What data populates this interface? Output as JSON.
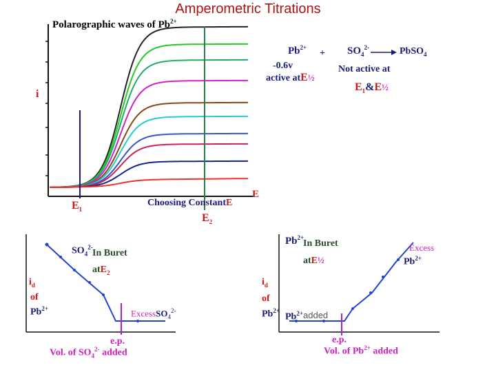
{
  "title": "Amperometric Titrations",
  "top_panel": {
    "heading": "Polarographic waves of Pb",
    "heading_charge": "2+",
    "y_label": "i",
    "e1_label": "E",
    "e1_sub": "1",
    "e2_label": "E",
    "e2_sub": "2",
    "x_caption": "Choosing Constant",
    "x_caption_e": "E",
    "x_axis_end": "E"
  },
  "reaction": {
    "pb": "Pb",
    "pb_charge": "2+",
    "plus": "+",
    "so4": "SO",
    "so4_sub": "4",
    "so4_charge": "2-",
    "product": "PbSO",
    "product_sub": "4",
    "potential": "-0.6v",
    "active_at": "active  at",
    "e_half": "E",
    "half": "½",
    "not_active": "Not active at",
    "e1_and": "E",
    "e1_sub": "1",
    "amp": "&",
    "e_half2": "E",
    "half2": "½"
  },
  "left_panel": {
    "titrant": "SO",
    "titrant_sub": "4",
    "titrant_charge": "2-",
    "in_buret": "In Buret",
    "at": "at",
    "at_e": "E",
    "at_sub": "2",
    "y1": "i",
    "y1_sub": "d",
    "y2": "of",
    "y3": "Pb",
    "y3_charge": "2+",
    "excess": "Excess",
    "excess_species": "SO",
    "excess_sub": "4",
    "excess_charge": "2-",
    "ep": "e.p.",
    "x_label_a": "Vol. of SO",
    "x_label_sub": "4",
    "x_label_charge": "2-",
    "x_label_b": "added"
  },
  "right_panel": {
    "titrant": "Pb",
    "titrant_charge": "2+",
    "in_buret": "In Buret",
    "at": "at",
    "at_e": "E",
    "at_half": "½",
    "y1": "i",
    "y1_sub": "d",
    "y2": "of",
    "y3": "Pb",
    "y3_charge": "2+",
    "low_species": "Pb",
    "low_charge": "2+",
    "added": "added",
    "excess": "Excess",
    "excess_species": "Pb",
    "excess_charge": "2+",
    "ep": "e.p.",
    "x_label_a": "Vol. of Pb",
    "x_label_charge": "2+",
    "x_label_b": "added"
  },
  "colors": {
    "wave_colors": [
      "#222222",
      "#22cc22",
      "#22aa66",
      "#cc22cc",
      "#8b4513",
      "#22cccc",
      "#3355cc",
      "#cc2255",
      "#112288",
      "#ee3322"
    ],
    "curve": "#2244cc",
    "ep_line": "#aa22cc",
    "axis": "#111111",
    "title": "#b01010"
  }
}
